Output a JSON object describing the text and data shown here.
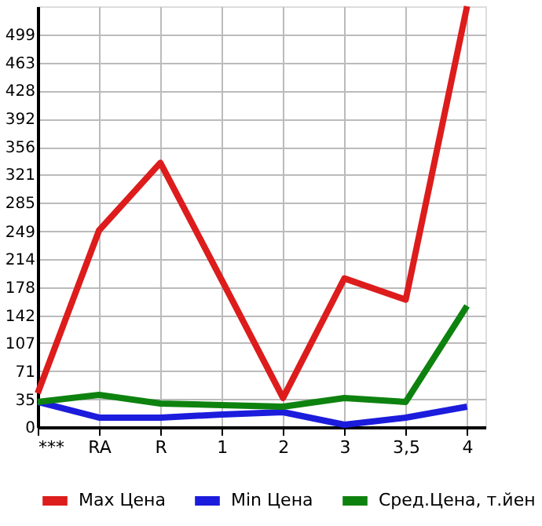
{
  "chart_data": {
    "type": "line",
    "categories": [
      "***",
      "RA",
      "R",
      "1",
      "2",
      "3",
      "3,5",
      "4"
    ],
    "series": [
      {
        "name": "Max Цена",
        "color": "#dd1c1c",
        "values": [
          43,
          250,
          336,
          187,
          37,
          189,
          162,
          535
        ]
      },
      {
        "name": "Min Цена",
        "color": "#1c1cdd",
        "values": [
          32,
          12,
          12,
          16,
          19,
          3,
          12,
          26
        ]
      },
      {
        "name": "Сред.Цена, т.йен",
        "color": "#0e820e",
        "values": [
          32,
          41,
          30,
          28,
          26,
          37,
          32,
          154
        ]
      }
    ],
    "ylim": [
      0,
      535
    ],
    "yticks": [
      0,
      35,
      71,
      107,
      142,
      178,
      214,
      249,
      285,
      321,
      356,
      392,
      428,
      463,
      499
    ],
    "grid": true,
    "legend": "bottom",
    "marker": "none",
    "line_style": "solid"
  }
}
